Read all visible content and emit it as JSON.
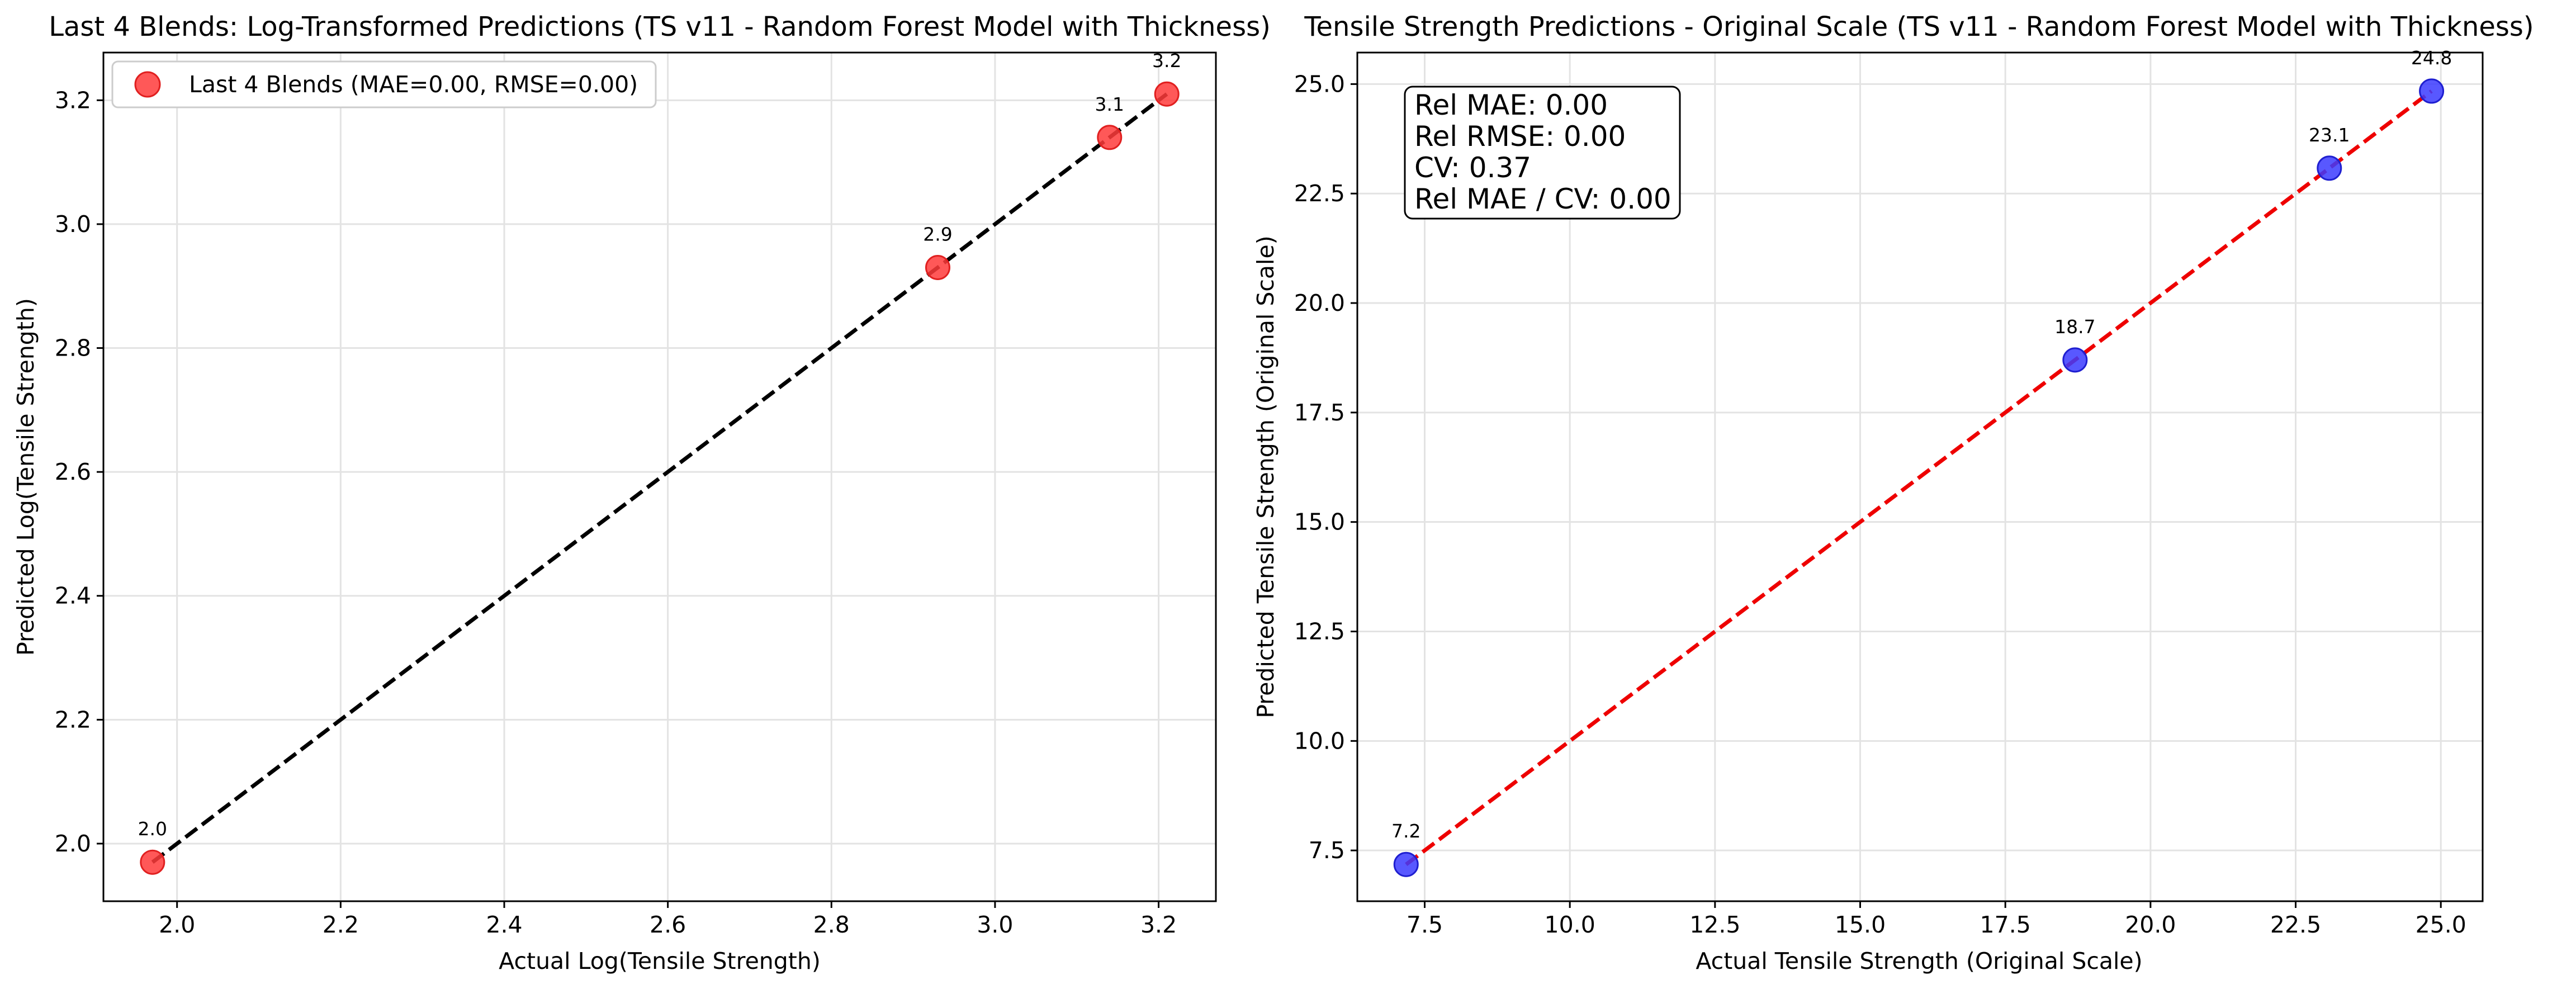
{
  "charts": [
    {
      "id": "log",
      "title": "Last 4 Blends: Log-Transformed Predictions (TS v11 - Random Forest Model with Thickness)",
      "xlabel": "Actual Log(Tensile Strength)",
      "ylabel": "Predicted Log(Tensile Strength)",
      "x_ticks": [
        "2.0",
        "2.2",
        "2.4",
        "2.6",
        "2.8",
        "3.0",
        "3.2"
      ],
      "y_ticks": [
        "2.0",
        "2.2",
        "2.4",
        "2.6",
        "2.8",
        "3.0",
        "3.2"
      ],
      "legend_label": "Last 4 Blends (MAE=0.00, RMSE=0.00)",
      "point_labels": [
        "2.0",
        "2.9",
        "3.1",
        "3.2"
      ]
    },
    {
      "id": "orig",
      "title": "Tensile Strength Predictions - Original Scale (TS v11 - Random Forest Model with Thickness)",
      "xlabel": "Actual Tensile Strength (Original Scale)",
      "ylabel": "Predicted Tensile Strength (Original Scale)",
      "x_ticks": [
        "7.5",
        "10.0",
        "12.5",
        "15.0",
        "17.5",
        "20.0",
        "22.5",
        "25.0"
      ],
      "y_ticks": [
        "7.5",
        "10.0",
        "12.5",
        "15.0",
        "17.5",
        "20.0",
        "22.5",
        "25.0"
      ],
      "stats_lines": [
        "Rel MAE: 0.00",
        "Rel RMSE: 0.00",
        "CV: 0.37",
        "Rel MAE / CV: 0.00"
      ],
      "point_labels": [
        "7.2",
        "18.7",
        "23.1",
        "24.8"
      ]
    }
  ],
  "chart_data": [
    {
      "type": "scatter",
      "title": "Last 4 Blends: Log-Transformed Predictions (TS v11 - Random Forest Model with Thickness)",
      "xlabel": "Actual Log(Tensile Strength)",
      "ylabel": "Predicted Log(Tensile Strength)",
      "xlim": [
        1.91,
        3.27
      ],
      "ylim": [
        1.907,
        3.277
      ],
      "xticks": [
        2.0,
        2.2,
        2.4,
        2.6,
        2.8,
        3.0,
        3.2
      ],
      "yticks": [
        2.0,
        2.2,
        2.4,
        2.6,
        2.8,
        3.0,
        3.2
      ],
      "grid": true,
      "legend": "upper-left",
      "series": [
        {
          "name": "Last 4 Blends (MAE=0.00, RMSE=0.00)",
          "color": "#ff3b3b",
          "x": [
            1.97,
            2.93,
            3.14,
            3.21
          ],
          "y": [
            1.97,
            2.93,
            3.14,
            3.21
          ],
          "labels": [
            "2.0",
            "2.9",
            "3.1",
            "3.2"
          ]
        }
      ],
      "reference_line": {
        "style": "dashed",
        "color": "#000000",
        "from": [
          1.97,
          1.97
        ],
        "to": [
          3.21,
          3.21
        ]
      }
    },
    {
      "type": "scatter",
      "title": "Tensile Strength Predictions - Original Scale (TS v11 - Random Forest Model with Thickness)",
      "xlabel": "Actual Tensile Strength (Original Scale)",
      "ylabel": "Predicted Tensile Strength (Original Scale)",
      "xlim": [
        6.34,
        25.72
      ],
      "ylim": [
        6.34,
        25.72
      ],
      "xticks": [
        7.5,
        10.0,
        12.5,
        15.0,
        17.5,
        20.0,
        22.5,
        25.0
      ],
      "yticks": [
        7.5,
        10.0,
        12.5,
        15.0,
        17.5,
        20.0,
        22.5,
        25.0
      ],
      "grid": true,
      "series": [
        {
          "color": "#3b3bff",
          "x": [
            7.18,
            18.7,
            23.08,
            24.84
          ],
          "y": [
            7.18,
            18.7,
            23.08,
            24.84
          ],
          "labels": [
            "7.2",
            "18.7",
            "23.1",
            "24.8"
          ]
        }
      ],
      "reference_line": {
        "style": "dashed",
        "color": "#ee0000",
        "from": [
          7.18,
          7.18
        ],
        "to": [
          24.84,
          24.84
        ]
      },
      "annotation": [
        "Rel MAE: 0.00",
        "Rel RMSE: 0.00",
        "CV: 0.37",
        "Rel MAE / CV: 0.00"
      ]
    }
  ]
}
